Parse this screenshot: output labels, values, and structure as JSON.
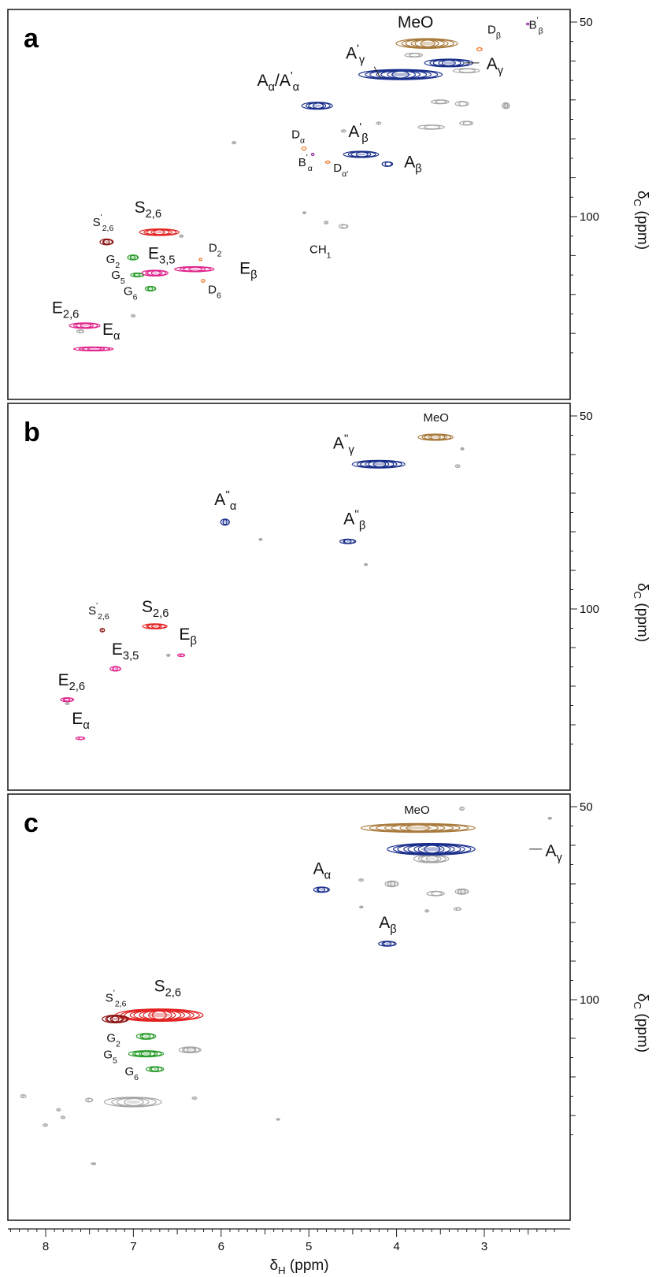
{
  "colors": {
    "brown": "#a87a3c",
    "blue": "#1a2f8c",
    "gray": "#a5a5a5",
    "red": "#e32222",
    "darkred": "#8b1212",
    "green": "#2a9d2a",
    "magenta": "#e0238c",
    "orange": "#f07020",
    "purple": "#8a2a9a"
  },
  "x_axis": {
    "label_main": "δ",
    "label_sub": "H",
    "label_unit": " (ppm)",
    "ticks": [
      "8",
      "7",
      "6",
      "5",
      "4",
      "3"
    ],
    "tick_values": [
      8,
      7,
      6,
      5,
      4,
      3
    ]
  },
  "y_axis": {
    "label_main": "δ",
    "label_sub": "C",
    "label_unit": " (ppm)",
    "ticks": [
      "50",
      "100"
    ],
    "tick_values": [
      50,
      100
    ]
  },
  "chart_data": [
    {
      "type": "scatter",
      "panel": "a",
      "xlim": [
        8.4,
        2.2
      ],
      "ylim": [
        48,
        136
      ],
      "peaks": [
        {
          "label": "MeO",
          "base": "MeO",
          "sub": "",
          "sup": "",
          "x": 3.65,
          "y": 55.5,
          "w": 0.7,
          "h": 2.5,
          "color": "brown",
          "layers": 6
        },
        {
          "label": "A'γ",
          "base": "A",
          "sub": "γ",
          "sup": "'",
          "x": 3.95,
          "y": 63.5,
          "w": 0.95,
          "h": 2.6,
          "color": "blue",
          "layers": 7
        },
        {
          "label": "Aγ",
          "base": "A",
          "sub": "γ",
          "sup": "",
          "x": 3.4,
          "y": 60.5,
          "w": 0.55,
          "h": 2.0,
          "color": "blue",
          "layers": 5
        },
        {
          "label": "Dβ",
          "base": "D",
          "sub": "β",
          "sup": "",
          "x": 3.05,
          "y": 57.0,
          "w": 0.06,
          "h": 0.8,
          "color": "orange",
          "layers": 1
        },
        {
          "label": "B'β",
          "base": "B",
          "sub": "β",
          "sup": "'",
          "x": 2.5,
          "y": 50.5,
          "w": 0.03,
          "h": 0.5,
          "color": "purple",
          "layers": 1
        },
        {
          "label": "Aα/A'α",
          "base": "A",
          "sub": "α",
          "sup": "",
          "x": 4.9,
          "y": 71.5,
          "w": 0.35,
          "h": 1.8,
          "color": "blue",
          "layers": 4
        },
        {
          "label": "A'β",
          "base": "A",
          "sub": "β",
          "sup": "'",
          "x": 4.4,
          "y": 84.0,
          "w": 0.4,
          "h": 1.6,
          "color": "blue",
          "layers": 4
        },
        {
          "label": "Aβ",
          "base": "A",
          "sub": "β",
          "sup": "",
          "x": 4.1,
          "y": 86.5,
          "w": 0.12,
          "h": 1.2,
          "color": "blue",
          "layers": 2
        },
        {
          "label": "Dα",
          "base": "D",
          "sub": "α",
          "sup": "",
          "x": 5.05,
          "y": 82.5,
          "w": 0.05,
          "h": 0.8,
          "color": "orange",
          "layers": 1
        },
        {
          "label": "B'α",
          "base": "B",
          "sub": "α",
          "sup": "'",
          "x": 4.95,
          "y": 84.0,
          "w": 0.03,
          "h": 0.6,
          "color": "purple",
          "layers": 1
        },
        {
          "label": "Dα'",
          "base": "D",
          "sub": "α'",
          "sup": "",
          "x": 4.78,
          "y": 86.0,
          "w": 0.05,
          "h": 0.6,
          "color": "orange",
          "layers": 1
        },
        {
          "label": "S2,6",
          "base": "S",
          "sub": "2,6",
          "sup": "",
          "x": 6.7,
          "y": 104.0,
          "w": 0.45,
          "h": 1.7,
          "color": "red",
          "layers": 5
        },
        {
          "label": "S'2,6",
          "base": "S",
          "sub": "2,6",
          "sup": "'",
          "x": 7.3,
          "y": 106.5,
          "w": 0.15,
          "h": 1.5,
          "color": "darkred",
          "layers": 3
        },
        {
          "label": "G2",
          "base": "G",
          "sub": "2",
          "sup": "",
          "x": 7.0,
          "y": 110.5,
          "w": 0.12,
          "h": 1.3,
          "color": "green",
          "layers": 3
        },
        {
          "label": "G5",
          "base": "G",
          "sub": "5",
          "sup": "",
          "x": 6.95,
          "y": 115.0,
          "w": 0.15,
          "h": 1.0,
          "color": "green",
          "layers": 3
        },
        {
          "label": "G6",
          "base": "G",
          "sub": "6",
          "sup": "",
          "x": 6.8,
          "y": 118.5,
          "w": 0.12,
          "h": 1.2,
          "color": "green",
          "layers": 3
        },
        {
          "label": "E3,5",
          "base": "E",
          "sub": "3,5",
          "sup": "",
          "x": 6.75,
          "y": 114.5,
          "w": 0.3,
          "h": 1.5,
          "color": "magenta",
          "layers": 4
        },
        {
          "label": "Eβ",
          "base": "E",
          "sub": "β",
          "sup": "",
          "x": 6.3,
          "y": 113.5,
          "w": 0.45,
          "h": 1.3,
          "color": "magenta",
          "layers": 4
        },
        {
          "label": "D2",
          "base": "D",
          "sub": "2",
          "sup": "",
          "x": 6.23,
          "y": 111.0,
          "w": 0.03,
          "h": 0.6,
          "color": "orange",
          "layers": 1
        },
        {
          "label": "D6",
          "base": "D",
          "sub": "6",
          "sup": "",
          "x": 6.2,
          "y": 116.5,
          "w": 0.04,
          "h": 0.7,
          "color": "orange",
          "layers": 1
        },
        {
          "label": "E2,6",
          "base": "E",
          "sub": "2,6",
          "sup": "",
          "x": 7.55,
          "y": 128.0,
          "w": 0.35,
          "h": 1.4,
          "color": "magenta",
          "layers": 4
        },
        {
          "label": "Eα",
          "base": "E",
          "sub": "α",
          "sup": "",
          "x": 7.45,
          "y": 134.0,
          "w": 0.45,
          "h": 1.0,
          "color": "magenta",
          "layers": 4
        },
        {
          "label": "CH1",
          "base": "CH",
          "sub": "1",
          "sup": "",
          "x": 4.6,
          "y": 102.5,
          "w": 0.1,
          "h": 1.0,
          "color": "gray",
          "layers": 2
        }
      ],
      "unlabeled_gray": [
        {
          "x": 3.8,
          "y": 58.5,
          "w": 0.2,
          "h": 1.0
        },
        {
          "x": 3.2,
          "y": 62.5,
          "w": 0.3,
          "h": 1.1
        },
        {
          "x": 3.5,
          "y": 70.5,
          "w": 0.2,
          "h": 1.0
        },
        {
          "x": 3.25,
          "y": 71.0,
          "w": 0.15,
          "h": 1.2
        },
        {
          "x": 2.75,
          "y": 71.5,
          "w": 0.08,
          "h": 1.5
        },
        {
          "x": 3.6,
          "y": 77.0,
          "w": 0.3,
          "h": 1.1
        },
        {
          "x": 3.2,
          "y": 76.0,
          "w": 0.15,
          "h": 1.0
        },
        {
          "x": 4.2,
          "y": 76.0,
          "w": 0.05,
          "h": 0.6
        },
        {
          "x": 4.6,
          "y": 78.0,
          "w": 0.05,
          "h": 0.6
        },
        {
          "x": 5.85,
          "y": 81.0,
          "w": 0.04,
          "h": 0.6
        },
        {
          "x": 5.05,
          "y": 99.0,
          "w": 0.02,
          "h": 0.5
        },
        {
          "x": 4.8,
          "y": 101.5,
          "w": 0.04,
          "h": 0.7
        },
        {
          "x": 7.6,
          "y": 129.5,
          "w": 0.08,
          "h": 0.8
        },
        {
          "x": 7.0,
          "y": 125.5,
          "w": 0.04,
          "h": 0.6
        },
        {
          "x": 6.45,
          "y": 105.0,
          "w": 0.04,
          "h": 0.6
        }
      ]
    },
    {
      "type": "scatter",
      "panel": "b",
      "xlim": [
        8.4,
        2.2
      ],
      "ylim": [
        48,
        136
      ],
      "peaks": [
        {
          "label": "MeO",
          "base": "MeO",
          "sub": "",
          "sup": "",
          "x": 3.55,
          "y": 55.5,
          "w": 0.4,
          "h": 1.6,
          "color": "brown",
          "layers": 5
        },
        {
          "label": "A''γ",
          "base": "A",
          "sub": "γ",
          "sup": "''",
          "x": 4.2,
          "y": 62.5,
          "w": 0.6,
          "h": 2.0,
          "color": "blue",
          "layers": 6
        },
        {
          "label": "A''α",
          "base": "A",
          "sub": "α",
          "sup": "''",
          "x": 5.95,
          "y": 77.5,
          "w": 0.1,
          "h": 1.6,
          "color": "blue",
          "layers": 3
        },
        {
          "label": "A''β",
          "base": "A",
          "sub": "β",
          "sup": "''",
          "x": 4.55,
          "y": 82.5,
          "w": 0.18,
          "h": 1.2,
          "color": "blue",
          "layers": 3
        },
        {
          "label": "S2,6",
          "base": "S",
          "sub": "2,6",
          "sup": "",
          "x": 6.75,
          "y": 104.5,
          "w": 0.28,
          "h": 1.3,
          "color": "red",
          "layers": 4
        },
        {
          "label": "S'2,6",
          "base": "S",
          "sub": "2,6",
          "sup": "'",
          "x": 7.35,
          "y": 105.5,
          "w": 0.05,
          "h": 0.9,
          "color": "darkred",
          "layers": 2
        },
        {
          "label": "E3,5",
          "base": "E",
          "sub": "3,5",
          "sup": "",
          "x": 7.2,
          "y": 115.5,
          "w": 0.12,
          "h": 1.2,
          "color": "magenta",
          "layers": 3
        },
        {
          "label": "Eβ",
          "base": "E",
          "sub": "β",
          "sup": "",
          "x": 6.45,
          "y": 112.0,
          "w": 0.08,
          "h": 0.7,
          "color": "magenta",
          "layers": 2
        },
        {
          "label": "E2,6",
          "base": "E",
          "sub": "2,6",
          "sup": "",
          "x": 7.75,
          "y": 123.5,
          "w": 0.15,
          "h": 1.0,
          "color": "magenta",
          "layers": 3
        },
        {
          "label": "Eα",
          "base": "E",
          "sub": "α",
          "sup": "",
          "x": 7.6,
          "y": 133.5,
          "w": 0.1,
          "h": 0.7,
          "color": "magenta",
          "layers": 2
        }
      ],
      "unlabeled_gray": [
        {
          "x": 3.25,
          "y": 58.5,
          "w": 0.02,
          "h": 0.6
        },
        {
          "x": 3.3,
          "y": 63.0,
          "w": 0.05,
          "h": 0.7
        },
        {
          "x": 5.55,
          "y": 82.0,
          "w": 0.02,
          "h": 0.5
        },
        {
          "x": 4.35,
          "y": 88.5,
          "w": 0.02,
          "h": 0.5
        },
        {
          "x": 6.6,
          "y": 112.0,
          "w": 0.03,
          "h": 0.6
        },
        {
          "x": 7.75,
          "y": 124.5,
          "w": 0.04,
          "h": 0.5
        }
      ]
    },
    {
      "type": "scatter",
      "panel": "c",
      "xlim": [
        8.4,
        2.2
      ],
      "ylim": [
        48,
        136
      ],
      "peaks": [
        {
          "label": "MeO",
          "base": "MeO",
          "sub": "",
          "sup": "",
          "x": 3.75,
          "y": 55.5,
          "w": 1.3,
          "h": 2.3,
          "color": "brown",
          "layers": 7
        },
        {
          "label": "Aγ",
          "base": "A",
          "sub": "γ",
          "sup": "",
          "x": 3.6,
          "y": 61.0,
          "w": 1.0,
          "h": 3.0,
          "color": "blue",
          "layers": 8
        },
        {
          "label": "Aα",
          "base": "A",
          "sub": "α",
          "sup": "",
          "x": 4.85,
          "y": 71.5,
          "w": 0.18,
          "h": 1.4,
          "color": "blue",
          "layers": 3
        },
        {
          "label": "Aβ",
          "base": "A",
          "sub": "β",
          "sup": "",
          "x": 4.1,
          "y": 85.5,
          "w": 0.2,
          "h": 1.3,
          "color": "blue",
          "layers": 3
        },
        {
          "label": "S2,6",
          "base": "S",
          "sub": "2,6",
          "sup": "",
          "x": 6.7,
          "y": 104.0,
          "w": 1.0,
          "h": 3.2,
          "color": "red",
          "layers": 9
        },
        {
          "label": "S'2,6",
          "base": "S",
          "sub": "2,6",
          "sup": "'",
          "x": 7.2,
          "y": 105.0,
          "w": 0.3,
          "h": 2.0,
          "color": "darkred",
          "layers": 5
        },
        {
          "label": "G2",
          "base": "G",
          "sub": "2",
          "sup": "",
          "x": 6.85,
          "y": 109.5,
          "w": 0.22,
          "h": 1.5,
          "color": "green",
          "layers": 3
        },
        {
          "label": "G5",
          "base": "G",
          "sub": "5",
          "sup": "",
          "x": 6.85,
          "y": 114.0,
          "w": 0.4,
          "h": 1.6,
          "color": "green",
          "layers": 5
        },
        {
          "label": "G6",
          "base": "G",
          "sub": "6",
          "sup": "",
          "x": 6.75,
          "y": 118.0,
          "w": 0.2,
          "h": 1.3,
          "color": "green",
          "layers": 3
        }
      ],
      "unlabeled_gray": [
        {
          "x": 3.6,
          "y": 63.5,
          "w": 0.4,
          "h": 2.0
        },
        {
          "x": 6.35,
          "y": 113.0,
          "w": 0.25,
          "h": 1.5
        },
        {
          "x": 7.0,
          "y": 126.5,
          "w": 0.65,
          "h": 2.5
        },
        {
          "x": 7.5,
          "y": 126.0,
          "w": 0.08,
          "h": 1.0
        },
        {
          "x": 8.25,
          "y": 125.0,
          "w": 0.06,
          "h": 0.8
        },
        {
          "x": 7.85,
          "y": 128.5,
          "w": 0.04,
          "h": 0.6
        },
        {
          "x": 7.8,
          "y": 130.5,
          "w": 0.04,
          "h": 0.6
        },
        {
          "x": 8.0,
          "y": 132.5,
          "w": 0.05,
          "h": 0.6
        },
        {
          "x": 7.45,
          "y": 142.5,
          "w": 0.05,
          "h": 0.5
        },
        {
          "x": 6.3,
          "y": 125.5,
          "w": 0.05,
          "h": 0.6
        },
        {
          "x": 5.35,
          "y": 131.0,
          "w": 0.02,
          "h": 0.4
        },
        {
          "x": 4.4,
          "y": 69.0,
          "w": 0.05,
          "h": 0.6
        },
        {
          "x": 4.05,
          "y": 70.0,
          "w": 0.15,
          "h": 1.5
        },
        {
          "x": 3.55,
          "y": 72.5,
          "w": 0.2,
          "h": 1.2
        },
        {
          "x": 3.25,
          "y": 72.0,
          "w": 0.15,
          "h": 1.4
        },
        {
          "x": 4.4,
          "y": 76.0,
          "w": 0.03,
          "h": 0.5
        },
        {
          "x": 3.65,
          "y": 77.0,
          "w": 0.04,
          "h": 0.6
        },
        {
          "x": 3.3,
          "y": 76.5,
          "w": 0.08,
          "h": 0.7
        },
        {
          "x": 3.25,
          "y": 50.5,
          "w": 0.05,
          "h": 0.8
        },
        {
          "x": 2.25,
          "y": 53.0,
          "w": 0.03,
          "h": 0.5
        }
      ]
    }
  ]
}
